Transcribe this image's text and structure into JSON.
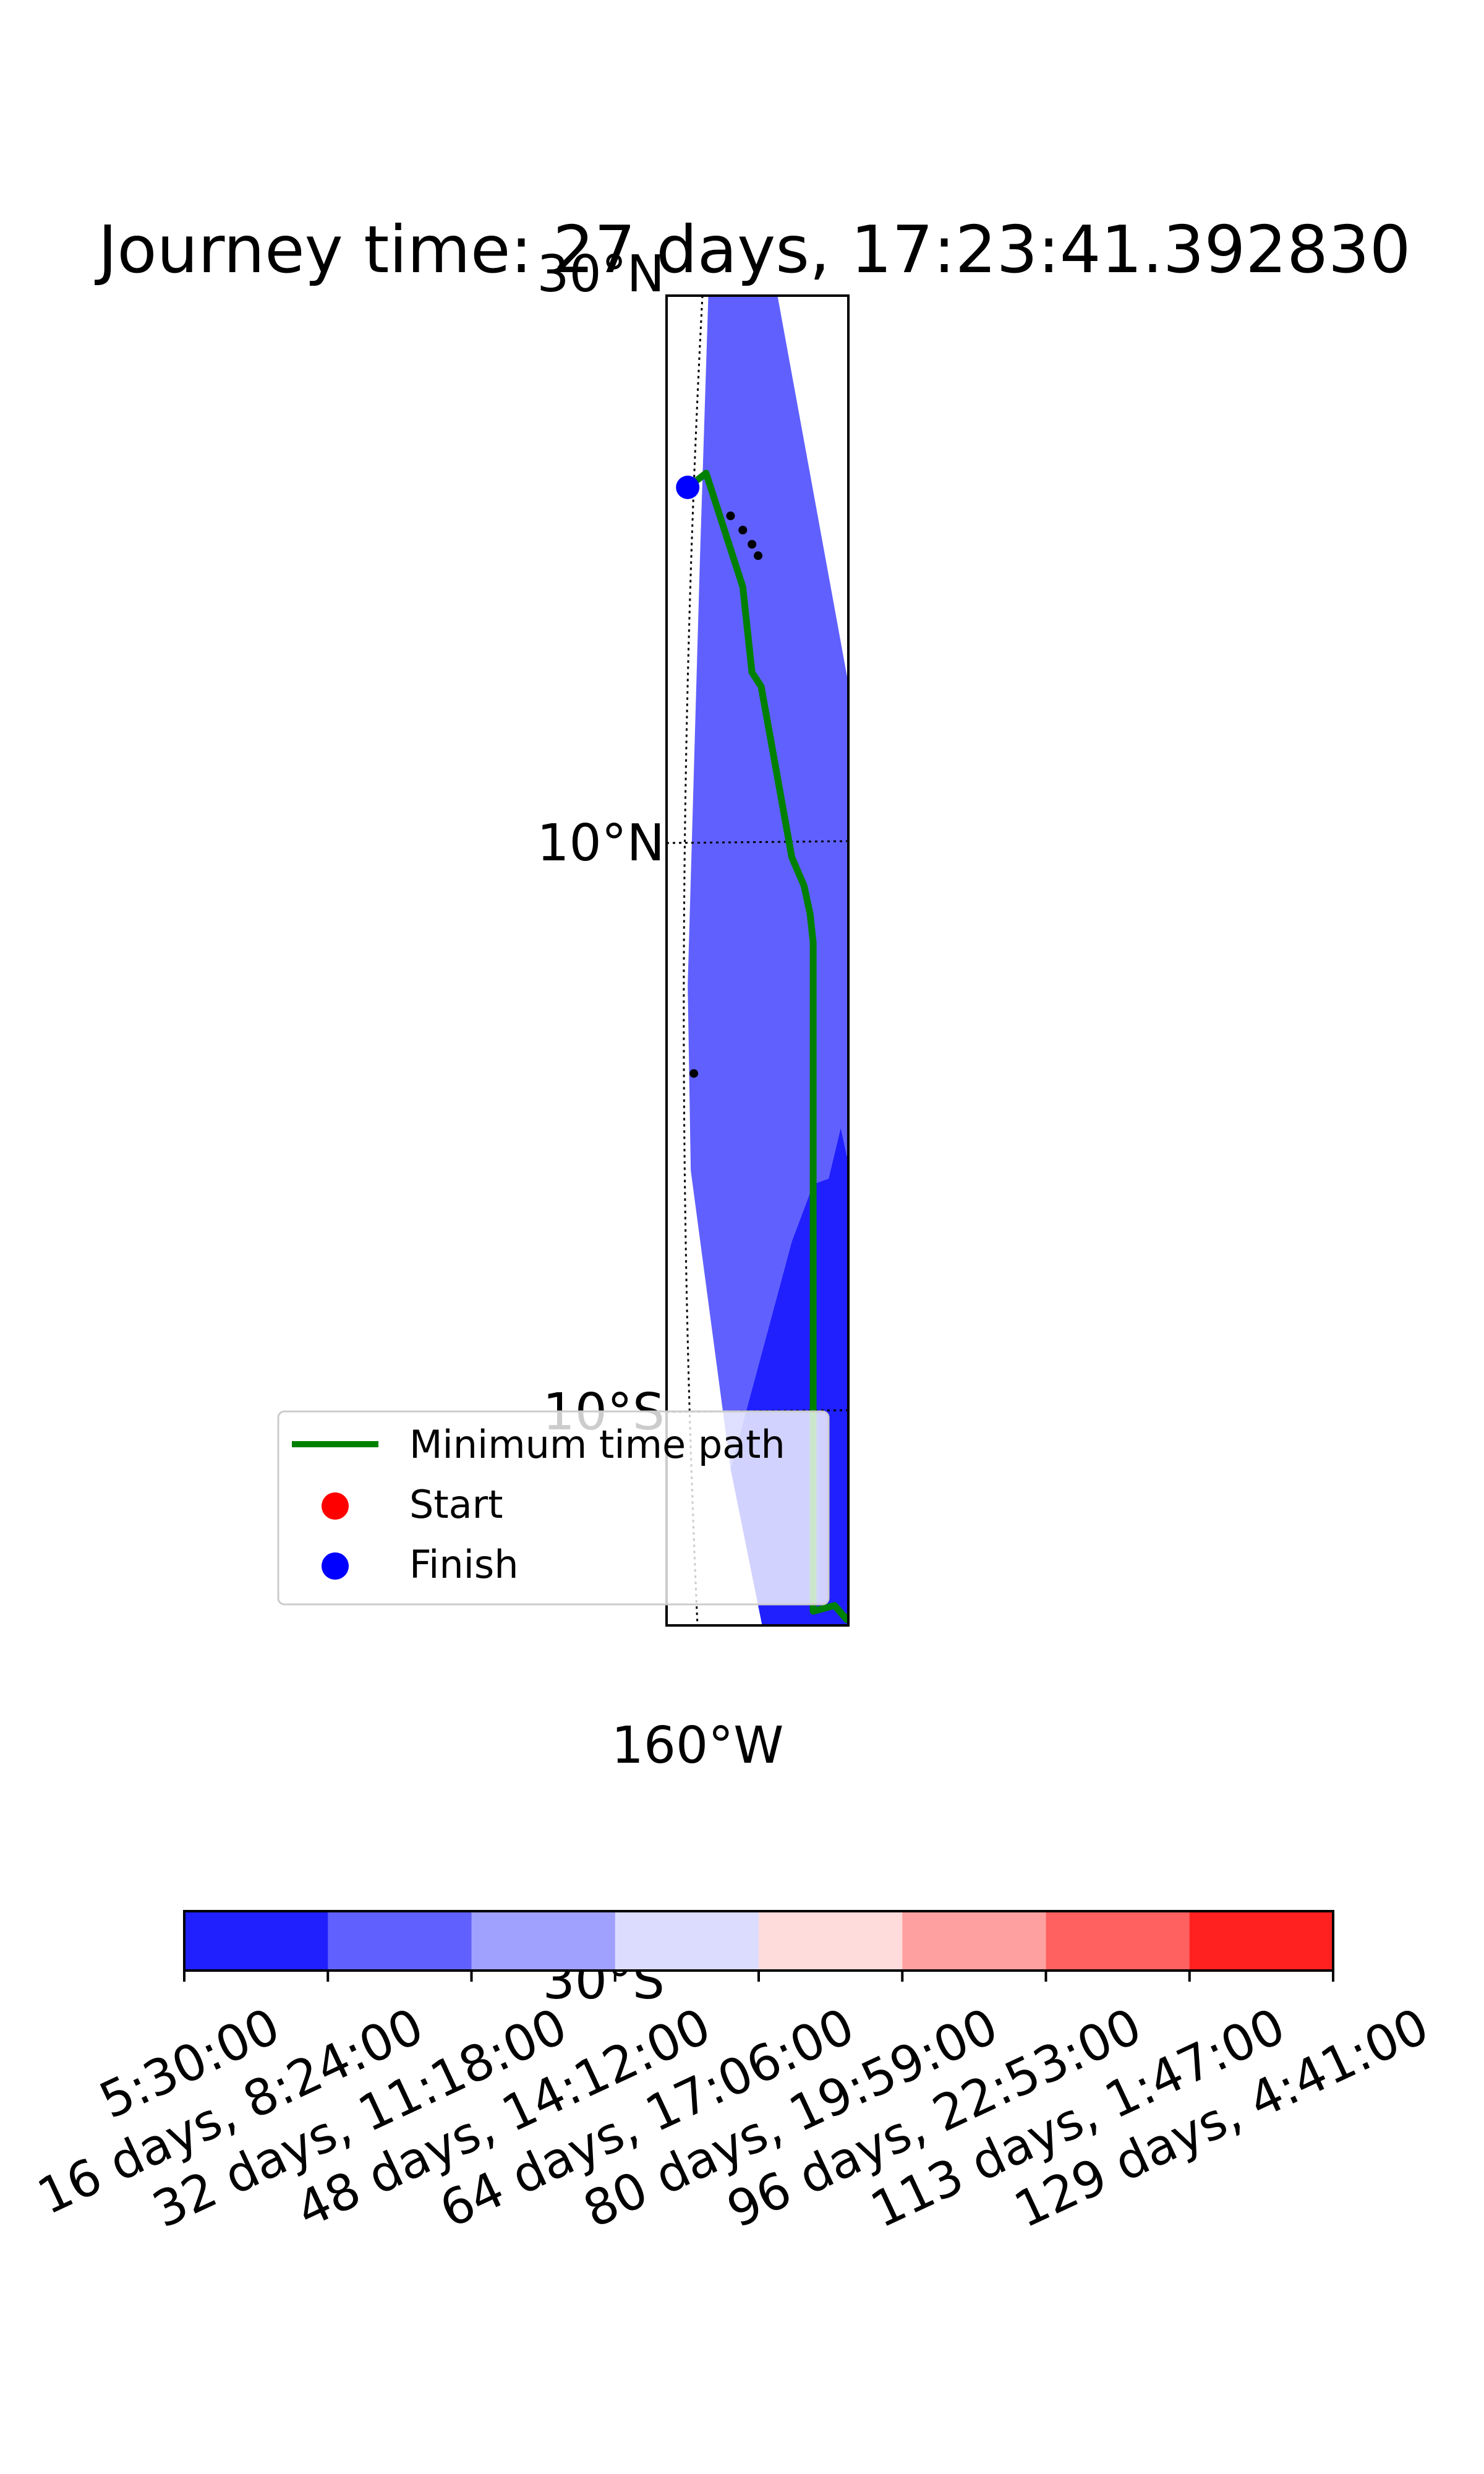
{
  "chart_data": {
    "type": "map",
    "title": "Journey time: 27 days, 17:23:41.392830",
    "lat_ticks": [
      "30°N",
      "10°N",
      "10°S",
      "30°S"
    ],
    "lon_ticks": [
      "160°W"
    ],
    "lat_tick_values": [
      30,
      10,
      -10,
      -30
    ],
    "lat_range": [
      -45,
      48
    ],
    "lon_range": [
      -162.5,
      -152
    ],
    "legend": {
      "placement": "lower-left",
      "entries": [
        {
          "label": "Minimum time path",
          "color": "#008000",
          "kind": "line"
        },
        {
          "label": "Start",
          "color": "#ff0000",
          "kind": "point"
        },
        {
          "label": "Finish",
          "color": "#0000ff",
          "kind": "point"
        }
      ]
    },
    "start": {
      "lon": -154.2,
      "lat": -17.5
    },
    "finish": {
      "lon": -160.4,
      "lat": 22.5
    },
    "path": [
      {
        "lon": -160.4,
        "lat": 22.5
      },
      {
        "lon": -159.8,
        "lat": 23.0
      },
      {
        "lon": -159.2,
        "lat": 21.0
      },
      {
        "lon": -158.6,
        "lat": 19.0
      },
      {
        "lon": -158.3,
        "lat": 16.0
      },
      {
        "lon": -158.0,
        "lat": 15.5
      },
      {
        "lon": -157.5,
        "lat": 12.5
      },
      {
        "lon": -157.0,
        "lat": 9.5
      },
      {
        "lon": -156.6,
        "lat": 8.5
      },
      {
        "lon": -156.4,
        "lat": 7.5
      },
      {
        "lon": -156.3,
        "lat": 6.5
      },
      {
        "lon": -156.3,
        "lat": -17.0
      },
      {
        "lon": -155.6,
        "lat": -16.8
      },
      {
        "lon": -155.2,
        "lat": -17.3
      },
      {
        "lon": -154.6,
        "lat": -16.3
      },
      {
        "lon": -154.2,
        "lat": -17.5
      }
    ],
    "reachable_regions": [
      {
        "level": "5:30:00 – 16 days, 8:24:00",
        "color": "#2020ff",
        "polygon": [
          [
            -155.0,
            -42.0
          ],
          [
            -156.3,
            -30.0
          ],
          [
            -157.5,
            -20.0
          ],
          [
            -159.0,
            -12.0
          ],
          [
            -157.0,
            -4.0
          ],
          [
            -156.3,
            -2.0
          ],
          [
            -156.0,
            -1.5
          ],
          [
            -155.8,
            -1.8
          ],
          [
            -155.4,
            0.0
          ],
          [
            -155.2,
            -1.0
          ],
          [
            -155.0,
            0.5
          ],
          [
            -154.6,
            -1.0
          ],
          [
            -154.3,
            -3.5
          ],
          [
            -154.2,
            -14.0
          ],
          [
            -154.4,
            -28.0
          ],
          [
            -154.8,
            -40.0
          ]
        ]
      },
      {
        "level": "16 days, 8:24:00 – 32 days, 11:18:00",
        "color": "#6060ff",
        "polygon": [
          [
            -159.6,
            33.5
          ],
          [
            -158.7,
            36.5
          ],
          [
            -154.2,
            10.0
          ],
          [
            -154.2,
            -12.0
          ],
          [
            -154.4,
            -3.5
          ],
          [
            -154.6,
            -1.0
          ],
          [
            -155.0,
            0.5
          ],
          [
            -155.2,
            -1.0
          ],
          [
            -155.4,
            0.0
          ],
          [
            -155.8,
            -1.8
          ],
          [
            -156.3,
            -2.0
          ],
          [
            -157.0,
            -4.0
          ],
          [
            -159.0,
            -12.0
          ],
          [
            -160.3,
            -1.5
          ],
          [
            -160.4,
            5.0
          ],
          [
            -160.0,
            20.0
          ]
        ]
      },
      {
        "level": "32 days, 11:18:00 – 48 days, 14:12:00",
        "color": "#a0a0ff",
        "polygon": [
          [
            -159.6,
            43.0
          ],
          [
            -158.7,
            36.5
          ],
          [
            -159.6,
            33.5
          ],
          [
            -159.8,
            30.0
          ]
        ]
      },
      {
        "level": "32 days, 11:18:00 – 48 days, 14:12:00",
        "color": "#a0a0ff",
        "polygon": [
          [
            -155.0,
            -42.0
          ],
          [
            -154.8,
            -40.0
          ],
          [
            -154.4,
            -28.0
          ],
          [
            -156.3,
            -30.0
          ]
        ]
      }
    ],
    "islands": [
      {
        "lon": -158.3,
        "lat": 20.5
      },
      {
        "lon": -158.1,
        "lat": 20.1
      },
      {
        "lon": -158.6,
        "lat": 21.0
      },
      {
        "lon": -159.0,
        "lat": 21.5
      },
      {
        "lon": -161.6,
        "lat": 22.0
      },
      {
        "lon": -160.2,
        "lat": 1.9
      }
    ],
    "colorbar": {
      "orientation": "horizontal",
      "colors": [
        "#2020ff",
        "#6060ff",
        "#a0a0ff",
        "#dcdcff",
        "#ffdcdc",
        "#ffa0a0",
        "#ff6060",
        "#ff2020"
      ],
      "tick_labels": [
        "5:30:00",
        "16 days, 8:24:00",
        "32 days, 11:18:00",
        "48 days, 14:12:00",
        "64 days, 17:06:00",
        "80 days, 19:59:00",
        "96 days, 22:53:00",
        "113 days, 1:47:00",
        "129 days, 4:41:00"
      ]
    }
  }
}
